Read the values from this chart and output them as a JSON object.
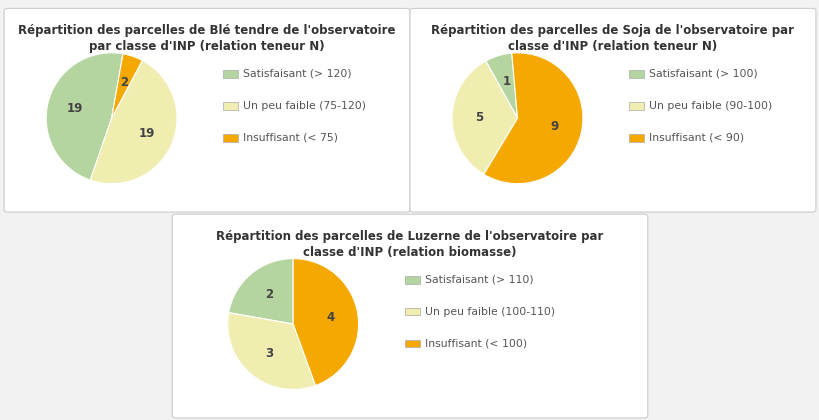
{
  "ble": {
    "title1": "Répartition des parcelles de Blé tendre de l'observatoire",
    "title2": "par classe d'INP (relation teneur N)",
    "values": [
      19,
      19,
      2
    ],
    "labels": [
      "Satisfaisant (> 120)",
      "Un peu faible (75-120)",
      "Insuffisant (< 75)"
    ],
    "colors": [
      "#b5d5a0",
      "#f0edb0",
      "#f5a800"
    ],
    "startangle": 80
  },
  "soja": {
    "title1": "Répartition des parcelles de Soja de l'observatoire par",
    "title2": "classe d'INP (relation teneur N)",
    "values": [
      1,
      5,
      9
    ],
    "labels": [
      "Satisfaisant (> 100)",
      "Un peu faible (90-100)",
      "Insuffisant (< 90)"
    ],
    "colors": [
      "#b5d5a0",
      "#f0edb0",
      "#f5a800"
    ],
    "startangle": 95
  },
  "luzerne": {
    "title1": "Répartition des parcelles de Luzerne de l'observatoire par",
    "title2": "classe d'INP (relation biomasse)",
    "values": [
      2,
      3,
      4
    ],
    "labels": [
      "Satisfaisant (> 110)",
      "Un peu faible (100-110)",
      "Insuffisant (< 100)"
    ],
    "colors": [
      "#b5d5a0",
      "#f0edb0",
      "#f5a800"
    ],
    "startangle": 90
  },
  "bg_color": "#f2f2f2",
  "panel_bg": "#ffffff",
  "panel_edge": "#cccccc",
  "title_fontsize": 8.5,
  "legend_fontsize": 7.8,
  "label_fontsize": 8.5
}
